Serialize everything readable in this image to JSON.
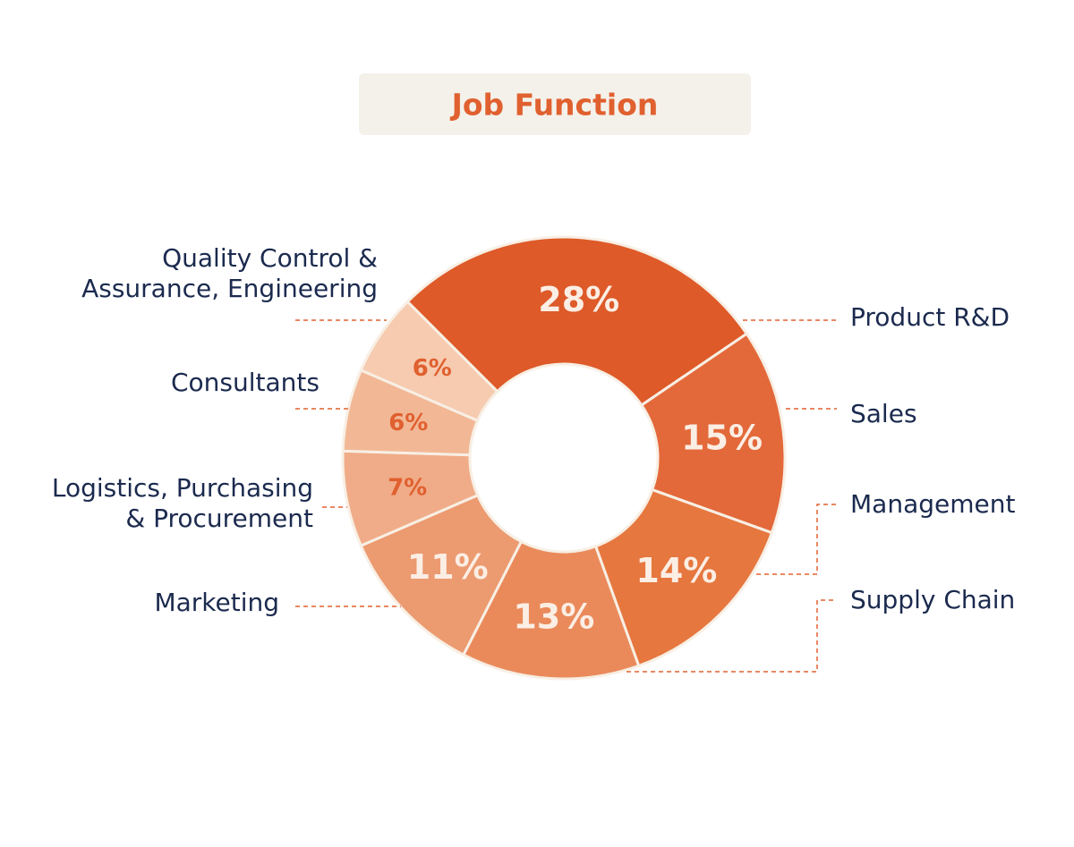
{
  "chart_data": {
    "type": "donut",
    "title": "Job Function",
    "categories": [
      "Product R&D",
      "Sales",
      "Management",
      "Supply Chain",
      "Marketing",
      "Logistics, Purchasing\n& Procurement",
      "Consultants",
      "Quality Control &\nAssurance, Engineering"
    ],
    "values": [
      28,
      15,
      14,
      13,
      11,
      7,
      6,
      6
    ],
    "value_labels": [
      "28%",
      "15%",
      "14%",
      "13%",
      "11%",
      "7%",
      "6%",
      "6%"
    ],
    "colors": [
      "#de5a29",
      "#e3693a",
      "#e6773f",
      "#ea8a5b",
      "#ec9a70",
      "#f0ac88",
      "#f2b896",
      "#f6cbb0"
    ],
    "value_label_colors": [
      "#fbeee4",
      "#fbeee4",
      "#fbeee4",
      "#fbeee4",
      "#fbeee4",
      "#e0602f",
      "#e0602f",
      "#e0602f"
    ]
  }
}
